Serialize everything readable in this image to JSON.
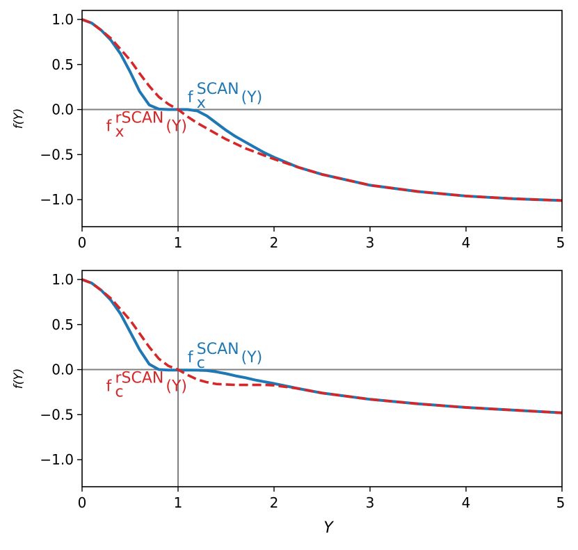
{
  "colors": {
    "scan": "#1f77b4",
    "rscan": "#d62728",
    "reference": "#808080",
    "frame": "#000000"
  },
  "chart_data": [
    {
      "type": "line",
      "title": "",
      "xlabel": "",
      "ylabel": "f(Y)",
      "xlim": [
        0,
        5
      ],
      "ylim": [
        -1.3,
        1.1
      ],
      "xticks": [
        0,
        1,
        2,
        3,
        4,
        5
      ],
      "xtick_labels": [
        "0",
        "1",
        "2",
        "3",
        "4",
        "5"
      ],
      "yticks": [
        1.0,
        0.5,
        0.0,
        -0.5,
        -1.0
      ],
      "ytick_labels": [
        "1.0",
        "0.5",
        "0.0",
        "−0.5",
        "−1.0"
      ],
      "grid": false,
      "reference_lines": {
        "x": 1,
        "y": 0
      },
      "annotations": [
        {
          "base": "f",
          "sup": "SCAN",
          "sub": "x",
          "arg": "(Y)",
          "color": "#1f77b4",
          "x": 1.1,
          "y": 0.08
        },
        {
          "base": "f",
          "sup": "rSCAN",
          "sub": "x",
          "arg": "(Y)",
          "color": "#d62728",
          "x": 0.25,
          "y": -0.24
        }
      ],
      "series": [
        {
          "key": "scan",
          "style": "solid",
          "x": [
            0,
            0.1,
            0.2,
            0.3,
            0.4,
            0.5,
            0.6,
            0.7,
            0.8,
            0.9,
            1.0,
            1.1,
            1.2,
            1.3,
            1.4,
            1.5,
            1.6,
            1.7,
            1.8,
            1.9,
            2.0,
            2.25,
            2.5,
            3.0,
            3.5,
            4.0,
            4.5,
            5.0
          ],
          "y": [
            1.0,
            0.96,
            0.88,
            0.77,
            0.62,
            0.42,
            0.2,
            0.05,
            0.005,
            0.0,
            0.0,
            0.0,
            -0.015,
            -0.07,
            -0.15,
            -0.23,
            -0.3,
            -0.36,
            -0.42,
            -0.48,
            -0.53,
            -0.64,
            -0.72,
            -0.84,
            -0.91,
            -0.96,
            -0.99,
            -1.01
          ]
        },
        {
          "key": "rscan",
          "style": "dashed",
          "x": [
            0,
            0.1,
            0.2,
            0.3,
            0.4,
            0.5,
            0.6,
            0.7,
            0.8,
            0.9,
            1.0,
            1.1,
            1.2,
            1.3,
            1.4,
            1.5,
            1.6,
            1.7,
            1.8,
            1.9,
            2.0,
            2.25,
            2.5,
            3.0,
            3.5,
            4.0,
            4.5,
            5.0
          ],
          "y": [
            1.0,
            0.96,
            0.88,
            0.79,
            0.67,
            0.55,
            0.4,
            0.26,
            0.14,
            0.06,
            0.0,
            -0.08,
            -0.15,
            -0.21,
            -0.27,
            -0.33,
            -0.38,
            -0.43,
            -0.47,
            -0.51,
            -0.55,
            -0.64,
            -0.72,
            -0.84,
            -0.91,
            -0.96,
            -0.99,
            -1.01
          ]
        }
      ]
    },
    {
      "type": "line",
      "title": "",
      "xlabel": "Y",
      "ylabel": "f(Y)",
      "xlim": [
        0,
        5
      ],
      "ylim": [
        -1.3,
        1.1
      ],
      "xticks": [
        0,
        1,
        2,
        3,
        4,
        5
      ],
      "xtick_labels": [
        "0",
        "1",
        "2",
        "3",
        "4",
        "5"
      ],
      "yticks": [
        1.0,
        0.5,
        0.0,
        -0.5,
        -1.0
      ],
      "ytick_labels": [
        "1.0",
        "0.5",
        "0.0",
        "−0.5",
        "−1.0"
      ],
      "grid": false,
      "reference_lines": {
        "x": 1,
        "y": 0
      },
      "annotations": [
        {
          "base": "f",
          "sup": "SCAN",
          "sub": "c",
          "arg": "(Y)",
          "color": "#1f77b4",
          "x": 1.1,
          "y": 0.08
        },
        {
          "base": "f",
          "sup": "rSCAN",
          "sub": "c",
          "arg": "(Y)",
          "color": "#d62728",
          "x": 0.25,
          "y": -0.24
        }
      ],
      "series": [
        {
          "key": "scan",
          "style": "solid",
          "x": [
            0,
            0.1,
            0.2,
            0.3,
            0.4,
            0.5,
            0.6,
            0.7,
            0.8,
            0.9,
            1.0,
            1.1,
            1.2,
            1.3,
            1.4,
            1.5,
            1.6,
            1.7,
            1.8,
            1.9,
            2.0,
            2.25,
            2.5,
            3.0,
            3.5,
            4.0,
            4.5,
            5.0
          ],
          "y": [
            1.0,
            0.96,
            0.88,
            0.77,
            0.62,
            0.42,
            0.22,
            0.06,
            0.0,
            -0.005,
            -0.005,
            -0.005,
            -0.006,
            -0.01,
            -0.025,
            -0.045,
            -0.07,
            -0.09,
            -0.115,
            -0.135,
            -0.155,
            -0.21,
            -0.26,
            -0.33,
            -0.38,
            -0.42,
            -0.45,
            -0.48
          ]
        },
        {
          "key": "rscan",
          "style": "dashed",
          "x": [
            0,
            0.1,
            0.2,
            0.3,
            0.4,
            0.5,
            0.6,
            0.7,
            0.8,
            0.9,
            1.0,
            1.1,
            1.2,
            1.3,
            1.4,
            1.5,
            1.6,
            1.7,
            1.8,
            1.9,
            2.0,
            2.25,
            2.5,
            3.0,
            3.5,
            4.0,
            4.5,
            5.0
          ],
          "y": [
            1.0,
            0.96,
            0.88,
            0.79,
            0.67,
            0.55,
            0.4,
            0.25,
            0.12,
            0.04,
            0.0,
            -0.06,
            -0.11,
            -0.14,
            -0.16,
            -0.165,
            -0.17,
            -0.17,
            -0.17,
            -0.17,
            -0.175,
            -0.21,
            -0.26,
            -0.33,
            -0.38,
            -0.42,
            -0.45,
            -0.48
          ]
        }
      ]
    }
  ]
}
